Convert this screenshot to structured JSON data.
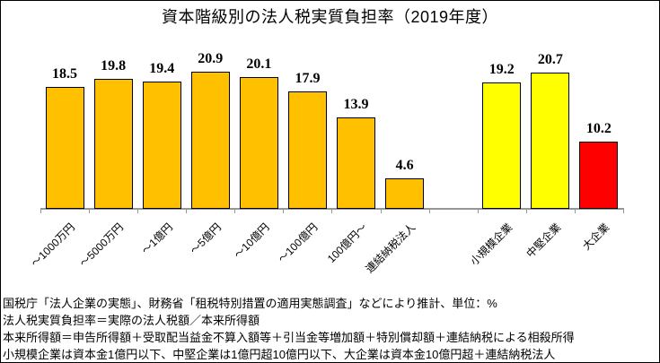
{
  "title": "資本階級別の法人税実質負担率（2019年度）",
  "chart_data": {
    "type": "bar",
    "title": "資本階級別の法人税実質負担率（2019年度）",
    "categories": [
      "～1000万円",
      "～5000万円",
      "～1億円",
      "～5億円",
      "～10億円",
      "～100億円",
      "100億円～",
      "連結納税法人",
      "",
      "小規模企業",
      "中堅企業",
      "大企業"
    ],
    "values": [
      18.5,
      19.8,
      19.4,
      20.9,
      20.1,
      17.9,
      13.9,
      4.6,
      null,
      19.2,
      20.7,
      10.2
    ],
    "bar_colors": [
      "#FFC000",
      "#FFC000",
      "#FFC000",
      "#FFC000",
      "#FFC000",
      "#FFC000",
      "#FFC000",
      "#FFC000",
      null,
      "#FFFF00",
      "#FFFF00",
      "#FF0000"
    ],
    "unit": "%",
    "ylim": [
      0,
      25
    ],
    "grid": false,
    "legend": false,
    "x_tick_label_rotation_deg": 45,
    "data_labels": "above bars, one decimal"
  },
  "colors": {
    "bar_small_medium_capital": "#FFC000",
    "bar_smb_group": "#FFFF00",
    "bar_large_company": "#FF0000",
    "axis": "#969696",
    "text": "#000000",
    "background": "#FFFFFF"
  },
  "footnotes": [
    "国税庁「法人企業の実態」、財務省「租税特別措置の適用実態調査」などにより推計、単位：%",
    "法人税実質負担率＝実際の法人税額／本来所得額",
    "本来所得額＝申告所得額＋受取配当益金不算入額等＋引当金等増加額＋特別償却額＋連結納税による相殺所得",
    "小規模企業は資本金1億円以下、中堅企業は1億円超10億円以下、大企業は資本金10億円超＋連結納税法人"
  ]
}
